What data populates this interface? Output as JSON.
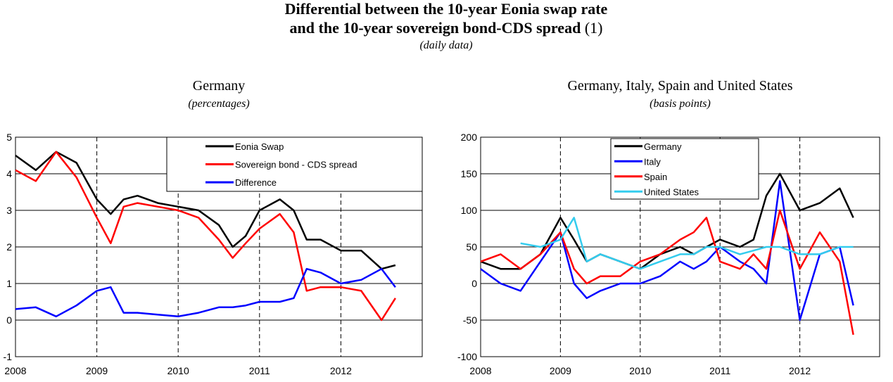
{
  "title": [
    "Differential between the 10-year Eonia swap rate",
    "and the 10-year sovereign bond-CDS spread"
  ],
  "title_note": "(1)",
  "subtitle": "(daily data)",
  "chart_data": [
    {
      "type": "line",
      "title": "Germany",
      "subtitle": "(percentages)",
      "x": [
        2008.0,
        2008.25,
        2008.5,
        2008.75,
        2009.0,
        2009.17,
        2009.33,
        2009.5,
        2009.75,
        2010.0,
        2010.25,
        2010.5,
        2010.67,
        2010.83,
        2011.0,
        2011.25,
        2011.42,
        2011.58,
        2011.75,
        2012.0,
        2012.25,
        2012.5,
        2012.67
      ],
      "series": [
        {
          "name": "Eonia Swap",
          "color": "#000000",
          "values": [
            4.5,
            4.1,
            4.6,
            4.3,
            3.3,
            2.9,
            3.3,
            3.4,
            3.2,
            3.1,
            3.0,
            2.6,
            2.0,
            2.3,
            3.0,
            3.3,
            3.0,
            2.2,
            2.2,
            1.9,
            1.9,
            1.4,
            1.5
          ]
        },
        {
          "name": "Sovereign bond - CDS spread",
          "color": "#ff0000",
          "values": [
            4.1,
            3.8,
            4.6,
            3.9,
            2.8,
            2.1,
            3.1,
            3.2,
            3.1,
            3.0,
            2.8,
            2.2,
            1.7,
            2.1,
            2.5,
            2.9,
            2.4,
            0.8,
            0.9,
            0.9,
            0.8,
            0.0,
            0.6
          ]
        },
        {
          "name": "Difference",
          "color": "#0000ff",
          "values": [
            0.3,
            0.35,
            0.1,
            0.4,
            0.8,
            0.9,
            0.2,
            0.2,
            0.15,
            0.1,
            0.2,
            0.35,
            0.35,
            0.4,
            0.5,
            0.5,
            0.6,
            1.4,
            1.3,
            1.0,
            1.1,
            1.4,
            0.9
          ]
        }
      ],
      "xlim": [
        2008,
        2013
      ],
      "xticks": [
        2008,
        2009,
        2010,
        2011,
        2012
      ],
      "ylim": [
        -1,
        5
      ],
      "yticks": [
        -1,
        0,
        1,
        2,
        3,
        4,
        5
      ],
      "grid": true,
      "legend": "upper right"
    },
    {
      "type": "line",
      "title": "Germany, Italy, Spain and United States",
      "subtitle": "(basis points)",
      "x": [
        2008.0,
        2008.25,
        2008.5,
        2008.75,
        2009.0,
        2009.17,
        2009.33,
        2009.5,
        2009.75,
        2010.0,
        2010.25,
        2010.5,
        2010.67,
        2010.83,
        2011.0,
        2011.25,
        2011.42,
        2011.58,
        2011.75,
        2012.0,
        2012.25,
        2012.5,
        2012.67
      ],
      "series": [
        {
          "name": "Germany",
          "color": "#000000",
          "values": [
            30,
            20,
            20,
            40,
            90,
            60,
            30,
            40,
            30,
            20,
            40,
            50,
            40,
            50,
            60,
            50,
            60,
            120,
            150,
            100,
            110,
            130,
            90
          ]
        },
        {
          "name": "Italy",
          "color": "#0000ff",
          "values": [
            20,
            0,
            -10,
            30,
            70,
            0,
            -20,
            -10,
            0,
            0,
            10,
            30,
            20,
            30,
            50,
            30,
            20,
            0,
            140,
            -50,
            40,
            50,
            -30
          ]
        },
        {
          "name": "Spain",
          "color": "#ff0000",
          "values": [
            30,
            40,
            20,
            40,
            70,
            20,
            0,
            10,
            10,
            30,
            40,
            60,
            70,
            90,
            30,
            20,
            40,
            20,
            100,
            20,
            70,
            30,
            -70
          ]
        },
        {
          "name": "United States",
          "color": "#33ccee",
          "values": [
            null,
            null,
            55,
            50,
            60,
            90,
            30,
            40,
            30,
            20,
            30,
            40,
            40,
            50,
            50,
            40,
            45,
            50,
            50,
            40,
            40,
            50,
            50
          ]
        }
      ],
      "xlim": [
        2008,
        2013
      ],
      "xticks": [
        2008,
        2009,
        2010,
        2011,
        2012
      ],
      "ylim": [
        -100,
        200
      ],
      "yticks": [
        -100,
        -50,
        0,
        50,
        100,
        150,
        200
      ],
      "grid": true,
      "legend": "upper center"
    }
  ]
}
